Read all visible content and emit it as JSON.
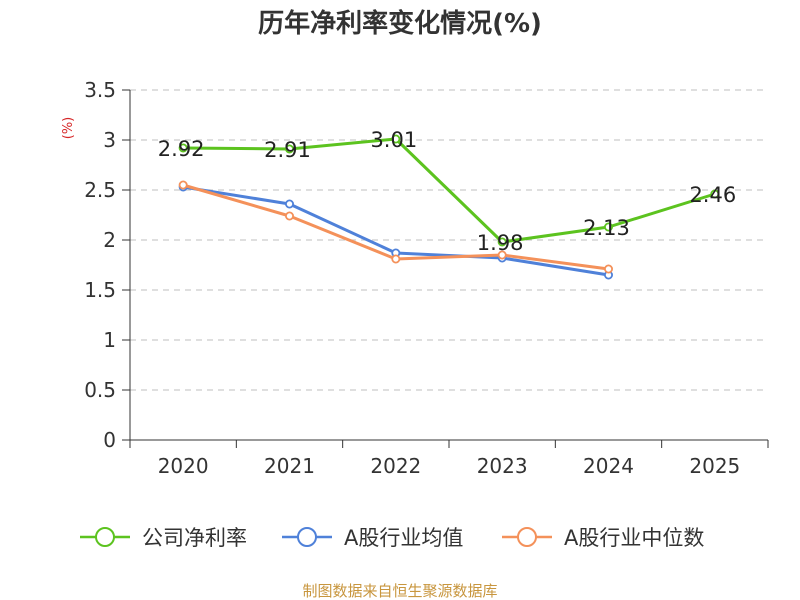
{
  "chart_data": {
    "type": "line",
    "title": "历年净利率变化情况(%)",
    "ylabel": "(%)",
    "xlabel": "",
    "categories": [
      "2020",
      "2021",
      "2022",
      "2023",
      "2024",
      "2025"
    ],
    "y_ticks": [
      "0",
      "0.5",
      "1",
      "1.5",
      "2",
      "2.5",
      "3",
      "3.5"
    ],
    "ylim": [
      0,
      3.5
    ],
    "grid": true,
    "legend_position": "bottom",
    "series": [
      {
        "name": "公司净利率",
        "color": "#5cc31f",
        "values": [
          2.92,
          2.91,
          3.01,
          1.98,
          2.13,
          2.46
        ],
        "labels": [
          "2.92",
          "2.91",
          "3.01",
          "1.98",
          "2.13",
          "2.46"
        ]
      },
      {
        "name": "A股行业均值",
        "color": "#4f81d9",
        "values": [
          2.53,
          2.36,
          1.87,
          1.82,
          1.65,
          null
        ]
      },
      {
        "name": "A股行业中位数",
        "color": "#f4915a",
        "values": [
          2.55,
          2.24,
          1.81,
          1.85,
          1.71,
          null
        ]
      }
    ]
  },
  "source": "制图数据来自恒生聚源数据库"
}
